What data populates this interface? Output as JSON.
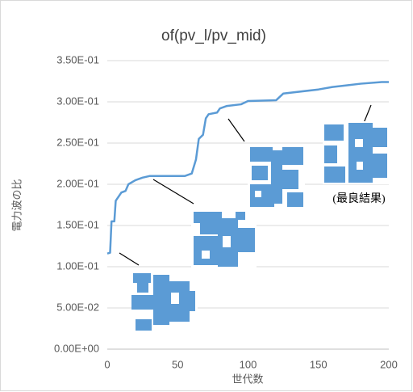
{
  "chart_data": {
    "type": "line",
    "title": "of(pv_l/pv_mid)",
    "x_label": "世代数",
    "y_label": "電力波の比",
    "annotation": "(最良結果)",
    "x": [
      0,
      2,
      3,
      5,
      6,
      8,
      10,
      13,
      15,
      20,
      25,
      30,
      55,
      60,
      63,
      65,
      68,
      70,
      72,
      78,
      80,
      85,
      95,
      100,
      120,
      125,
      150,
      160,
      170,
      180,
      195,
      200
    ],
    "values": [
      0.116,
      0.117,
      0.155,
      0.155,
      0.18,
      0.185,
      0.19,
      0.192,
      0.2,
      0.205,
      0.208,
      0.21,
      0.21,
      0.213,
      0.23,
      0.255,
      0.26,
      0.28,
      0.285,
      0.287,
      0.292,
      0.295,
      0.297,
      0.301,
      0.302,
      0.31,
      0.315,
      0.318,
      0.32,
      0.322,
      0.324,
      0.324
    ],
    "color": "#5b9bd5",
    "xlim": [
      0,
      200
    ],
    "xticks": [
      0,
      50,
      100,
      150,
      200
    ],
    "ylim": [
      0,
      0.35
    ],
    "yticks": [
      {
        "value": 0,
        "label": "0.00E+00"
      },
      {
        "value": 0.05,
        "label": "5.00E-02"
      },
      {
        "value": 0.1,
        "label": "1.00E-01"
      },
      {
        "value": 0.15,
        "label": "1.50E-01"
      },
      {
        "value": 0.2,
        "label": "2.00E-01"
      },
      {
        "value": 0.25,
        "label": "2.50E-01"
      },
      {
        "value": 0.3,
        "label": "3.00E-01"
      },
      {
        "value": 0.35,
        "label": "3.50E-01"
      }
    ],
    "grid": true
  }
}
